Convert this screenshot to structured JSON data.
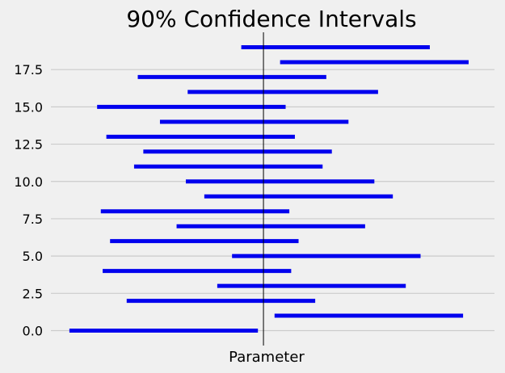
{
  "chart_data": {
    "type": "interval",
    "title": "90% Confidence Intervals",
    "xlabel": "Parameter",
    "ylabel": "",
    "ylim": [
      -1,
      20
    ],
    "yticks": [
      0.0,
      2.5,
      5.0,
      7.5,
      10.0,
      12.5,
      15.0,
      17.5
    ],
    "ytick_labels": [
      "0.0",
      "2.5",
      "5.0",
      "7.5",
      "10.0",
      "12.5",
      "15.0",
      "17.5"
    ],
    "xlim": [
      -1.15,
      1.25
    ],
    "parameter": 0.0,
    "grid": "horizontal",
    "colors": {
      "interval": "#0000ee",
      "parameter_line": "#000000",
      "grid": "#cbcbcb",
      "background": "#f0f0f0"
    },
    "intervals": [
      {
        "y": 0,
        "low": -1.05,
        "high": -0.03
      },
      {
        "y": 1,
        "low": 0.06,
        "high": 1.08
      },
      {
        "y": 2,
        "low": -0.74,
        "high": 0.28
      },
      {
        "y": 3,
        "low": -0.25,
        "high": 0.77
      },
      {
        "y": 4,
        "low": -0.87,
        "high": 0.15
      },
      {
        "y": 5,
        "low": -0.17,
        "high": 0.85
      },
      {
        "y": 6,
        "low": -0.83,
        "high": 0.19
      },
      {
        "y": 7,
        "low": -0.47,
        "high": 0.55
      },
      {
        "y": 8,
        "low": -0.88,
        "high": 0.14
      },
      {
        "y": 9,
        "low": -0.32,
        "high": 0.7
      },
      {
        "y": 10,
        "low": -0.42,
        "high": 0.6
      },
      {
        "y": 11,
        "low": -0.7,
        "high": 0.32
      },
      {
        "y": 12,
        "low": -0.65,
        "high": 0.37
      },
      {
        "y": 13,
        "low": -0.85,
        "high": 0.17
      },
      {
        "y": 14,
        "low": -0.56,
        "high": 0.46
      },
      {
        "y": 15,
        "low": -0.9,
        "high": 0.12
      },
      {
        "y": 16,
        "low": -0.41,
        "high": 0.62
      },
      {
        "y": 17,
        "low": -0.68,
        "high": 0.34
      },
      {
        "y": 18,
        "low": 0.09,
        "high": 1.11
      },
      {
        "y": 19,
        "low": -0.12,
        "high": 0.9
      }
    ]
  }
}
